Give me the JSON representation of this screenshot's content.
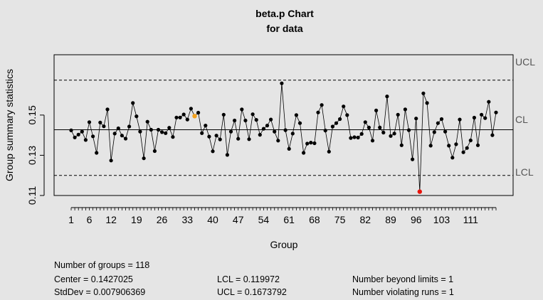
{
  "chart_data": {
    "type": "line",
    "title": "beta.p Chart",
    "subtitle": "for data",
    "xlabel": "Group",
    "ylabel": "Group summary statistics",
    "ylim": [
      0.11,
      0.18
    ],
    "xlim": [
      1,
      118
    ],
    "x_ticks": [
      "1",
      "6",
      "12",
      "19",
      "26",
      "33",
      "40",
      "47",
      "54",
      "61",
      "68",
      "75",
      "82",
      "89",
      "96",
      "103",
      "111"
    ],
    "x_tick_values": [
      1,
      6,
      12,
      19,
      26,
      33,
      40,
      47,
      54,
      61,
      68,
      75,
      82,
      89,
      96,
      103,
      111
    ],
    "minor_tick_step": 1,
    "y_ticks": [
      0.11,
      0.13,
      0.15
    ],
    "y_tick_labels": [
      "0.11",
      "0.13",
      "0.15"
    ],
    "control_limits": {
      "center": 0.1427025,
      "lcl": 0.119972,
      "ucl": 0.1673792,
      "labels": {
        "ucl": "UCL",
        "cl": "CL",
        "lcl": "LCL"
      }
    },
    "series": [
      {
        "values": [
          0.1424,
          0.1389,
          0.1403,
          0.1418,
          0.1376,
          0.1465,
          0.1394,
          0.1312,
          0.1463,
          0.1444,
          0.1528,
          0.1274,
          0.1408,
          0.1434,
          0.1398,
          0.1383,
          0.1443,
          0.156,
          0.1494,
          0.1418,
          0.1285,
          0.1467,
          0.1427,
          0.1321,
          0.1427,
          0.1415,
          0.141,
          0.1437,
          0.1391,
          0.1488,
          0.1488,
          0.1503,
          0.1478,
          0.1532,
          0.1495,
          0.1512,
          0.141,
          0.1448,
          0.1393,
          0.132,
          0.1398,
          0.1379,
          0.1502,
          0.1302,
          0.1418,
          0.1473,
          0.1382,
          0.1528,
          0.1473,
          0.138,
          0.1504,
          0.1476,
          0.1402,
          0.1432,
          0.1448,
          0.1478,
          0.1418,
          0.1373,
          0.1658,
          0.1425,
          0.1332,
          0.1408,
          0.15,
          0.146,
          0.1312,
          0.1358,
          0.1363,
          0.136,
          0.1513,
          0.155,
          0.1423,
          0.1318,
          0.1443,
          0.146,
          0.148,
          0.1543,
          0.15,
          0.1386,
          0.139,
          0.1388,
          0.1406,
          0.1465,
          0.1438,
          0.1373,
          0.1523,
          0.1438,
          0.1413,
          0.1593,
          0.1396,
          0.1408,
          0.1502,
          0.135,
          0.1528,
          0.1425,
          0.128,
          0.1483,
          0.1119,
          0.1608,
          0.156,
          0.1348,
          0.1415,
          0.146,
          0.148,
          0.1418,
          0.1348,
          0.1288,
          0.1355,
          0.1478,
          0.1315,
          0.1336,
          0.1374,
          0.1487,
          0.135,
          0.1502,
          0.1485,
          0.1566,
          0.14,
          0.1513
        ],
        "violating_runs_index": [
          35
        ],
        "beyond_limits_index": [
          97
        ]
      }
    ],
    "colors": {
      "background": "#e5e5e5",
      "point": "#000000",
      "beyond_limits": "#e8140c",
      "violating_run": "#f5a11c",
      "limit_line": "#000000",
      "side_label": "#555555"
    }
  },
  "stats": {
    "n_groups": "Number of groups = 118",
    "center": "Center = 0.1427025",
    "stddev": "StdDev = 0.007906369",
    "lcl": "LCL = 0.119972",
    "ucl": "UCL = 0.1673792",
    "beyond": "Number beyond limits = 1",
    "runs": "Number violating runs = 1"
  }
}
